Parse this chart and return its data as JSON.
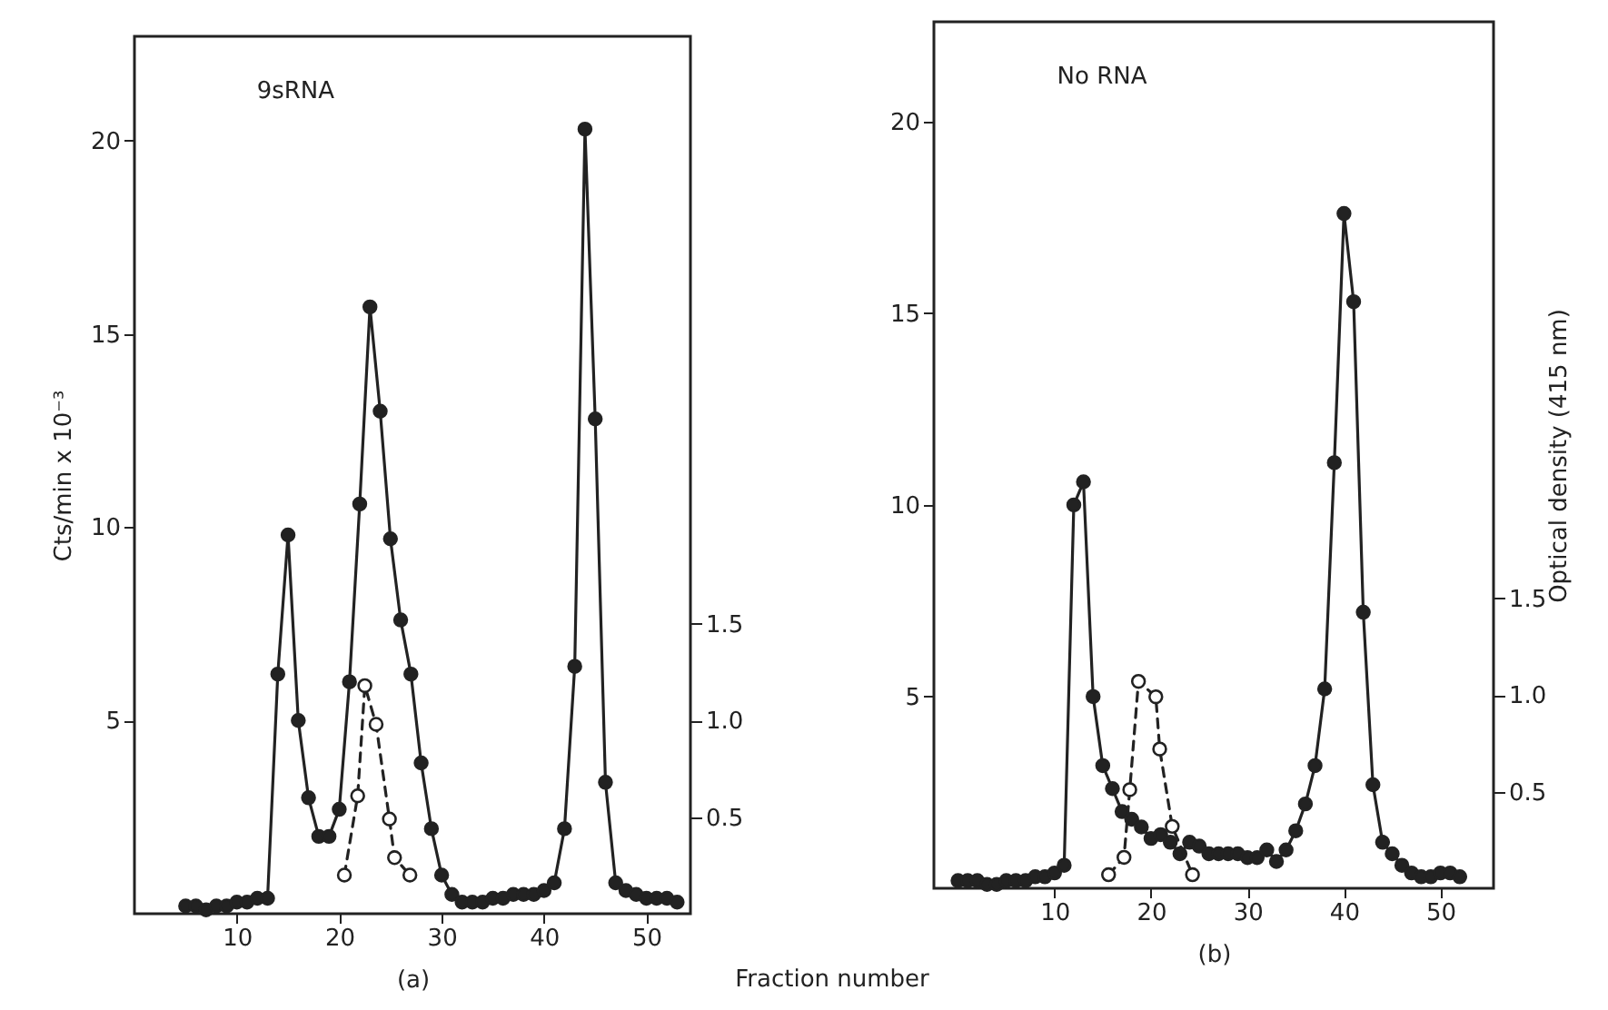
{
  "chart_data": [
    {
      "type": "line",
      "xlabel": "(a)",
      "ylabel": "Cts/min x 10⁻³",
      "annotations": [
        "9sRNA",
        "Fraction number"
      ],
      "xlim": [
        0,
        54.3
      ],
      "xticks": [
        10,
        20,
        30,
        40,
        50
      ],
      "ylim": [
        0,
        22.7
      ],
      "yticks": [
        5,
        10,
        15,
        20
      ],
      "y2lim": [
        0,
        4.54
      ],
      "y2ticks": [
        {
          "value": 0.5,
          "label": "0.5"
        },
        {
          "value": 1,
          "label": "1.0"
        },
        {
          "value": 1.5,
          "label": "1.5"
        }
      ],
      "marker": "circle",
      "grid": false,
      "series": [
        {
          "color": "#222222",
          "line_style": "solid",
          "x": [
            5,
            6,
            7,
            8,
            9,
            10,
            11,
            12,
            13,
            14,
            15,
            16,
            17,
            18,
            19,
            20,
            21,
            22,
            23,
            24,
            25,
            26,
            27,
            28,
            29,
            30,
            31,
            32,
            33,
            34,
            35,
            36,
            37,
            38,
            39,
            40,
            41,
            42,
            43,
            44,
            45,
            46,
            47,
            48,
            49,
            50,
            51,
            52,
            53
          ],
          "values": [
            0.2,
            0.2,
            0.1,
            0.2,
            0.2,
            0.3,
            0.3,
            0.4,
            0.4,
            6.2,
            9.8,
            5.0,
            3.0,
            2.0,
            2.0,
            2.7,
            6.0,
            10.6,
            15.7,
            13.0,
            9.7,
            7.6,
            6.2,
            3.9,
            2.2,
            1.0,
            0.5,
            0.3,
            0.3,
            0.3,
            0.4,
            0.4,
            0.5,
            0.5,
            0.5,
            0.6,
            0.8,
            2.2,
            6.4,
            20.3,
            12.8,
            3.4,
            0.8,
            0.6,
            0.5,
            0.4,
            0.4,
            0.4,
            0.3
          ]
        },
        {
          "color": "#222222",
          "line_style": "dashed",
          "axis": "y2",
          "x": [
            20.5,
            21.8,
            22.5,
            23.6,
            24.9,
            25.4,
            26.9
          ],
          "values": [
            0.2,
            0.61,
            1.18,
            0.98,
            0.49,
            0.29,
            0.2
          ]
        }
      ]
    },
    {
      "type": "line",
      "xlabel": "(b)",
      "y2label": "Optical density (415 nm)",
      "annotations": [
        "No RNA"
      ],
      "xlim": [
        -2.5,
        55.5
      ],
      "xticks": [
        10,
        20,
        30,
        40,
        50
      ],
      "ylim": [
        0,
        22.6
      ],
      "yticks": [
        5,
        10,
        15,
        20
      ],
      "y2lim": [
        0,
        4.48
      ],
      "y2ticks": [
        {
          "value": 0.5,
          "label": "0.5"
        },
        {
          "value": 1,
          "label": "1.0"
        },
        {
          "value": 1.5,
          "label": "1.5"
        }
      ],
      "marker": "circle",
      "grid": false,
      "series": [
        {
          "color": "#222222",
          "line_style": "solid",
          "x": [
            0,
            1,
            2,
            3,
            4,
            5,
            6,
            7,
            8,
            9,
            10,
            11,
            12,
            13,
            14,
            15,
            16,
            17,
            18,
            19,
            20,
            21,
            22,
            23,
            24,
            25,
            26,
            27,
            28,
            29,
            30,
            31,
            32,
            33,
            34,
            35,
            36,
            37,
            38,
            39,
            40,
            41,
            42,
            43,
            44,
            45,
            46,
            47,
            48,
            49,
            50,
            51,
            52
          ],
          "values": [
            0.2,
            0.2,
            0.2,
            0.1,
            0.1,
            0.2,
            0.2,
            0.2,
            0.3,
            0.3,
            0.4,
            0.6,
            10.0,
            10.6,
            5.0,
            3.2,
            2.6,
            2.0,
            1.8,
            1.6,
            1.3,
            1.4,
            1.2,
            0.9,
            1.2,
            1.1,
            0.9,
            0.9,
            0.9,
            0.9,
            0.8,
            0.8,
            1.0,
            0.7,
            1.0,
            1.5,
            2.2,
            3.2,
            5.2,
            11.1,
            17.6,
            15.3,
            7.2,
            2.7,
            1.2,
            0.9,
            0.6,
            0.4,
            0.3,
            0.3,
            0.4,
            0.4,
            0.3
          ]
        },
        {
          "color": "#222222",
          "line_style": "dashed",
          "axis": "y2",
          "x": [
            15.6,
            17.2,
            17.8,
            18.7,
            20.5,
            20.9,
            22.2,
            24.3
          ],
          "values": [
            0.07,
            0.16,
            0.51,
            1.07,
            0.99,
            0.72,
            0.32,
            0.07
          ]
        }
      ]
    }
  ]
}
